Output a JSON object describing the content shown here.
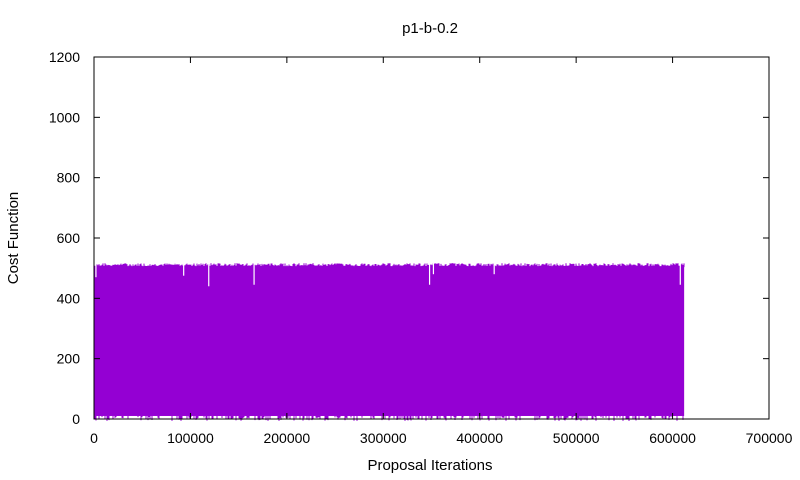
{
  "chart_data": {
    "type": "line",
    "title": "p1-b-0.2",
    "xlabel": "Proposal Iterations",
    "ylabel": "Cost Function",
    "xlim": [
      0,
      700000
    ],
    "ylim": [
      0,
      1200
    ],
    "xticks": [
      0,
      100000,
      200000,
      300000,
      400000,
      500000,
      600000,
      700000
    ],
    "yticks": [
      0,
      200,
      400,
      600,
      800,
      1000,
      1200
    ],
    "grid": false,
    "legend": "none",
    "series": [
      {
        "color": "#9400d3",
        "x_range": [
          0,
          612000
        ],
        "band": {
          "min": 10,
          "max": 505
        },
        "dips": [
          {
            "x": 2000,
            "y": 470
          },
          {
            "x": 93000,
            "y": 475
          },
          {
            "x": 119000,
            "y": 440
          },
          {
            "x": 166000,
            "y": 445
          },
          {
            "x": 348000,
            "y": 445
          },
          {
            "x": 352000,
            "y": 480
          },
          {
            "x": 415000,
            "y": 480
          },
          {
            "x": 608000,
            "y": 445
          }
        ]
      }
    ]
  }
}
